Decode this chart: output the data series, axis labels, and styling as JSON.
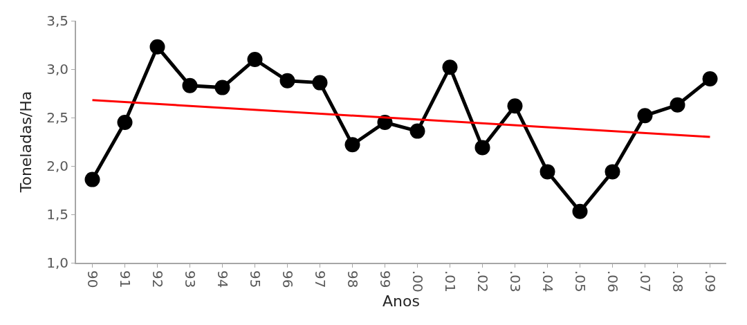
{
  "chart_data": {
    "type": "line",
    "xlabel": "Anos",
    "ylabel": "Toneladas/Ha",
    "categories": [
      "90",
      "91",
      "92",
      "93",
      "94",
      "95",
      "96",
      "97",
      "98",
      "99",
      ".00",
      ".01",
      ".02",
      ".03",
      ".04",
      ".05",
      ".06",
      ".07",
      ".08",
      ".09"
    ],
    "series": [
      {
        "color": "#000000",
        "marker": "circle",
        "values": [
          1.86,
          2.45,
          3.23,
          2.83,
          2.81,
          3.1,
          2.88,
          2.86,
          2.22,
          2.45,
          2.36,
          3.02,
          2.19,
          2.62,
          1.94,
          1.53,
          1.94,
          2.52,
          2.63,
          2.9
        ]
      },
      {
        "type": "line",
        "color": "#ff0000",
        "marker": "none",
        "x": [
          "90",
          ".09"
        ],
        "values": [
          2.68,
          2.3
        ]
      }
    ],
    "ylim": [
      1.0,
      3.5
    ],
    "yticks": [
      {
        "value": 1.0,
        "label": "1,0"
      },
      {
        "value": 1.5,
        "label": "1,5"
      },
      {
        "value": 2.0,
        "label": "2,0"
      },
      {
        "value": 2.5,
        "label": "2,5"
      },
      {
        "value": 3.0,
        "label": "3,0"
      },
      {
        "value": 3.5,
        "label": "3,5"
      }
    ],
    "line_style": "solid"
  }
}
